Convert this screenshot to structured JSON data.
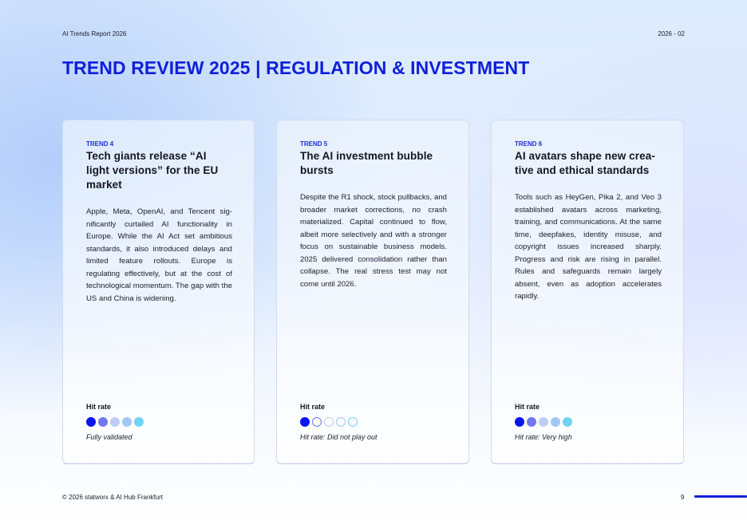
{
  "header": {
    "report_name": "AI Trends Report 2026",
    "issue": "2026 - 02"
  },
  "page_title": "TREND REVIEW 2025 | REGULATION & INVESTMENT",
  "cards": [
    {
      "label": "TREND 4",
      "title": "Tech giants release “AI light versions” for the EU market",
      "body": "Apple, Meta, OpenAI, and Tencent sig­nificantly curtailed AI functionality in Europe. While the AI Act set ambitious standards, it also introduced delays and limited feature rollouts. Europe is regulating effectively, but at the cost of technological momentum. The gap with the US and China is widening.",
      "hit_label": "Hit rate",
      "hit_note": "Fully validated",
      "dots": [
        {
          "fill": "#0a14f0",
          "border": "#0a14f0"
        },
        {
          "fill": "#6f78ee",
          "border": "#6f78ee"
        },
        {
          "fill": "#bfcdf6",
          "border": "#bfcdf6"
        },
        {
          "fill": "#a3c7f4",
          "border": "#a3c7f4"
        },
        {
          "fill": "#6fd3f3",
          "border": "#6fd3f3"
        }
      ]
    },
    {
      "label": "TREND 5",
      "title": "The AI investment bubble bursts",
      "body": "Despite the R1 shock, stock pullbacks, and broader market corrections, no crash materialized. Capital continued to flow, albeit more selectively and with a stronger focus on sustainable business models. 2025 delivered con­solidation rather than collapse. The real stress test may not come until 2026.",
      "hit_label": "Hit rate",
      "hit_note": "Hit rate: Did not play out",
      "dots": [
        {
          "fill": "#0a14f0",
          "border": "#0a14f0"
        },
        {
          "fill": "transparent",
          "border": "#6f78ee"
        },
        {
          "fill": "transparent",
          "border": "#bfcdf6"
        },
        {
          "fill": "transparent",
          "border": "#a3c7f4"
        },
        {
          "fill": "transparent",
          "border": "#6fd3f3"
        }
      ]
    },
    {
      "label": "TREND 6",
      "title": "AI avatars shape new crea­tive and ethical standards",
      "body": "Tools such as HeyGen, Pika 2, and Veo 3 established avatars across marke­ting, training, and communications. At the same time, deepfakes, identity misuse, and copyright issues increa­sed sharply. Progress and risk are ri­sing in parallel. Rules and safeguards remain largely absent, even as adop­tion accelerates rapidly.",
      "hit_label": "Hit rate",
      "hit_note": "Hit rate: Very high",
      "dots": [
        {
          "fill": "#0a14f0",
          "border": "#0a14f0"
        },
        {
          "fill": "#6f78ee",
          "border": "#6f78ee"
        },
        {
          "fill": "#bfcdf6",
          "border": "#bfcdf6"
        },
        {
          "fill": "#a3c7f4",
          "border": "#a3c7f4"
        },
        {
          "fill": "#6fd3f3",
          "border": "#6fd3f3"
        }
      ]
    }
  ],
  "footer": {
    "copyright": "© 2026 statworx & AI Hub Frankfurt",
    "page_number": "9"
  },
  "colors": {
    "accent": "#1020d8",
    "text": "#14161f"
  }
}
